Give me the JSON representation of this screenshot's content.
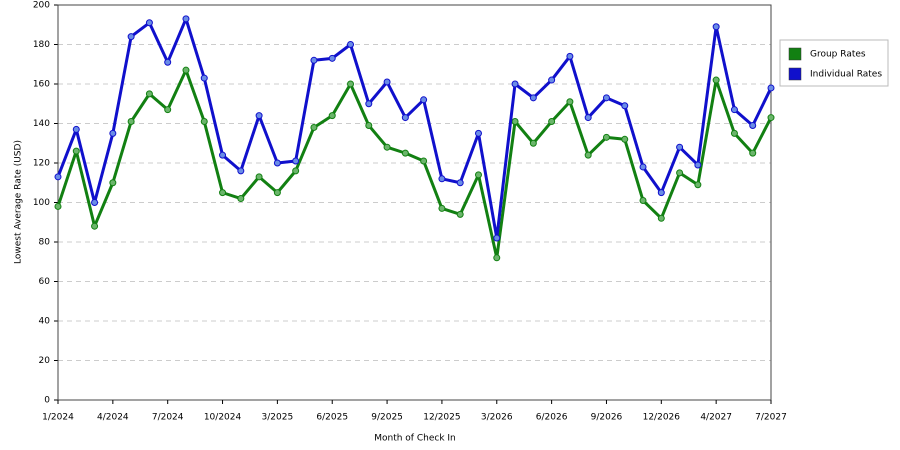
{
  "chart_data": {
    "type": "line",
    "x_label": "Month of Check In",
    "y_label": "Lowest Average Rate (USD)",
    "categories": [
      "1/2024",
      null,
      null,
      "4/2024",
      null,
      null,
      "7/2024",
      null,
      null,
      "10/2024",
      null,
      null,
      "3/2025",
      null,
      null,
      "6/2025",
      null,
      null,
      "9/2025",
      null,
      null,
      "12/2025",
      null,
      null,
      "3/2026",
      null,
      null,
      "6/2026",
      null,
      null,
      "9/2026",
      null,
      null,
      "12/2026",
      null,
      null,
      "4/2027",
      null,
      null,
      "7/2027"
    ],
    "series": [
      {
        "name": "Group Rates",
        "color": "#128012",
        "marker": "#6bb56b",
        "values": [
          98,
          126,
          88,
          110,
          141,
          155,
          147,
          167,
          141,
          105,
          102,
          113,
          105,
          116,
          138,
          144,
          160,
          139,
          128,
          125,
          121,
          97,
          94,
          114,
          72,
          141,
          130,
          141,
          151,
          124,
          133,
          132,
          101,
          92,
          115,
          109,
          162,
          135,
          125,
          143
        ]
      },
      {
        "name": "Individual Rates",
        "color": "#1010cc",
        "marker": "#6a8ce6",
        "values": [
          113,
          137,
          100,
          135,
          184,
          191,
          171,
          193,
          163,
          124,
          116,
          144,
          120,
          121,
          172,
          173,
          180,
          150,
          161,
          143,
          152,
          112,
          110,
          135,
          82,
          160,
          153,
          162,
          174,
          143,
          153,
          149,
          118,
          105,
          128,
          119,
          189,
          147,
          139,
          158
        ]
      }
    ],
    "ylim": [
      0,
      200
    ],
    "yticks": [
      0,
      20,
      40,
      60,
      80,
      100,
      120,
      140,
      160,
      180,
      200
    ],
    "grid": true,
    "legend": "right"
  }
}
